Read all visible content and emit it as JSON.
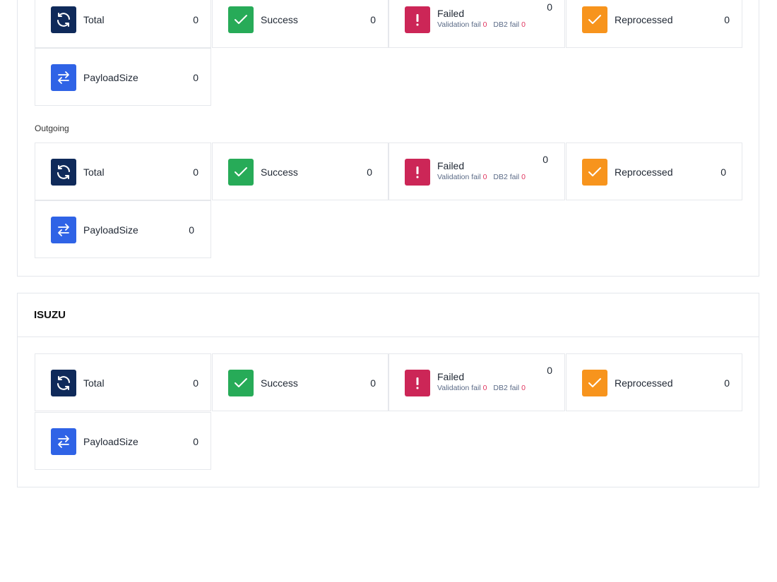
{
  "sections": {
    "incoming": {
      "total": {
        "label": "Total",
        "value": "0"
      },
      "success": {
        "label": "Success",
        "value": "0"
      },
      "failed": {
        "label": "Failed",
        "value": "0",
        "validation_label": "Validation fail",
        "validation_value": "0",
        "db2_label": "DB2 fail",
        "db2_value": "0"
      },
      "reprocessed": {
        "label": "Reprocessed",
        "value": "0"
      },
      "payload": {
        "label": "PayloadSize",
        "value": "0"
      }
    },
    "outgoing": {
      "title": "Outgoing",
      "total": {
        "label": "Total",
        "value": "0"
      },
      "success": {
        "label": "Success",
        "value": "0"
      },
      "failed": {
        "label": "Failed",
        "value": "0",
        "validation_label": "Validation fail",
        "validation_value": "0",
        "db2_label": "DB2 fail",
        "db2_value": "0"
      },
      "reprocessed": {
        "label": "Reprocessed",
        "value": "0"
      },
      "payload": {
        "label": "PayloadSize",
        "value": "0"
      }
    },
    "isuzu": {
      "title": "ISUZU",
      "total": {
        "label": "Total",
        "value": "0"
      },
      "success": {
        "label": "Success",
        "value": "0"
      },
      "failed": {
        "label": "Failed",
        "value": "0",
        "validation_label": "Validation fail",
        "validation_value": "0",
        "db2_label": "DB2 fail",
        "db2_value": "0"
      },
      "reprocessed": {
        "label": "Reprocessed",
        "value": "0"
      },
      "payload": {
        "label": "PayloadSize",
        "value": "0"
      }
    }
  },
  "icons": {
    "total": "refresh-icon",
    "success": "check-icon",
    "failed": "exclamation-icon",
    "reprocessed": "check-icon",
    "payload": "transfer-arrows-icon"
  },
  "colors": {
    "total": "#0f2a5a",
    "success": "#27ab58",
    "failed": "#cc2657",
    "reprocessed": "#f7941d",
    "payload": "#2f63e6",
    "fail_count": "#e0365f"
  }
}
